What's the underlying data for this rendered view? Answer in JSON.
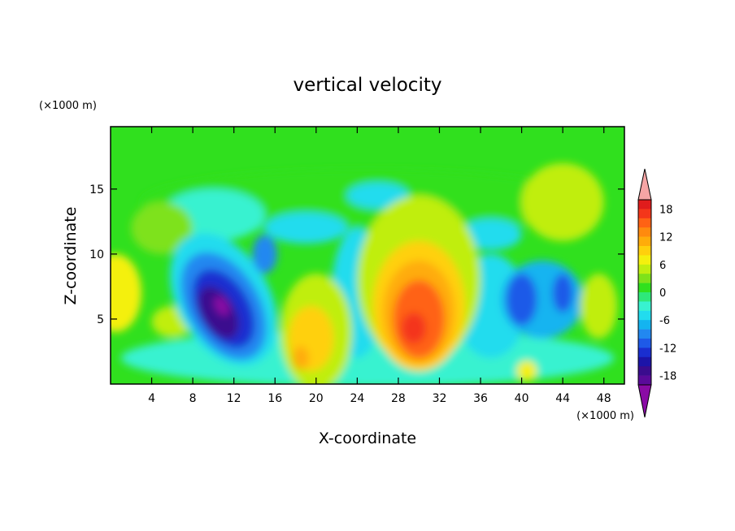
{
  "chart_data": {
    "type": "heatmap",
    "title": "vertical velocity",
    "xlabel": "X-coordinate",
    "ylabel": "Z-coordinate",
    "x_unit": "(×1000 m)",
    "y_unit": "(×1000 m)",
    "xlim": [
      0,
      50
    ],
    "ylim": [
      0,
      19.8
    ],
    "xticks": [
      4,
      8,
      12,
      16,
      20,
      24,
      28,
      32,
      36,
      40,
      44,
      48
    ],
    "yticks": [
      5,
      10,
      15
    ],
    "colorbar": {
      "labels": [
        18,
        12,
        6,
        0,
        -6,
        -12,
        -18
      ],
      "levels": [
        -20,
        -18,
        -16,
        -14,
        -12,
        -10,
        -8,
        -6,
        -4,
        -2,
        0,
        2,
        4,
        6,
        8,
        10,
        12,
        14,
        16,
        18,
        20
      ],
      "colors": [
        "#8a0ba5",
        "#5a0a9a",
        "#3a0c8e",
        "#1c14a8",
        "#1a2ed0",
        "#1e5ae8",
        "#2288f0",
        "#14b4f0",
        "#22dcee",
        "#38f2d0",
        "#2ee87a",
        "#30e01e",
        "#7ee21a",
        "#c0ee10",
        "#f4f00e",
        "#ffd00c",
        "#ffac0a",
        "#ff8a0e",
        "#ff6214",
        "#f4361a",
        "#e01c1c",
        "#f5a5a5"
      ],
      "over_color": "#f5a5a5",
      "under_color": "#8a0ba5"
    },
    "features": [
      {
        "kind": "downdraft",
        "x": 11,
        "z": 6,
        "value": -20
      },
      {
        "kind": "updraft",
        "x": 30,
        "z": 5,
        "value": 14
      },
      {
        "kind": "downdraft",
        "x": 42,
        "z": 6.5,
        "value": -10
      },
      {
        "kind": "updraft",
        "x": 20,
        "z": 3.5,
        "value": 7
      }
    ]
  }
}
